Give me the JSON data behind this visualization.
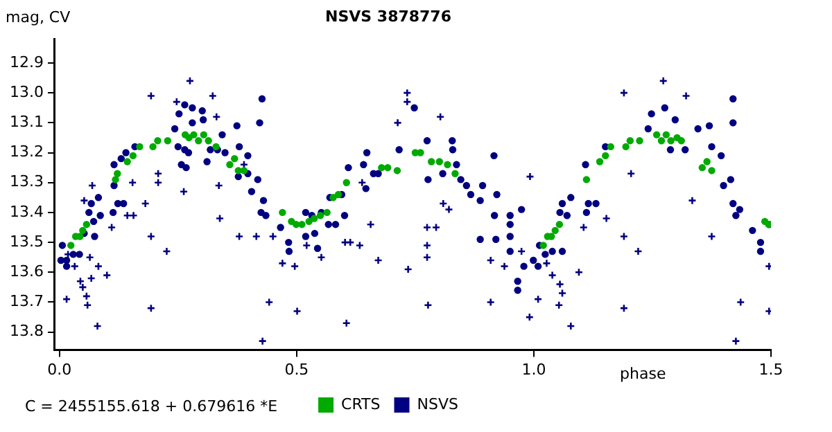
{
  "chart_data": {
    "type": "scatter",
    "title": "NSVS 3878776",
    "xlabel": "phase",
    "ylabel": "mag, CV",
    "annotations": [
      "C = 2455155.618 + 0.679616 *E"
    ],
    "xlim": [
      -0.01,
      1.5
    ],
    "xticks": [
      {
        "value": 0,
        "label": "0.0"
      },
      0.5,
      {
        "value": 1,
        "label": "1.0"
      },
      1.5
    ],
    "ylim": [
      13.86,
      12.82
    ],
    "yticks": [
      12.9,
      {
        "value": 13,
        "label": "13.0"
      },
      13.1,
      13.2,
      13.3,
      13.4,
      13.5,
      13.6,
      13.7,
      13.8
    ],
    "grid": false,
    "legend": "bottom",
    "series": [
      {
        "name": "CRTS",
        "color": "#00aa00",
        "marker": "circle",
        "x": [
          0.024,
          0.034,
          0.043,
          0.049,
          0.057,
          0.118,
          0.122,
          0.143,
          0.155,
          0.169,
          0.197,
          0.207,
          0.228,
          0.265,
          0.273,
          0.283,
          0.293,
          0.304,
          0.314,
          0.33,
          0.359,
          0.369,
          0.377,
          0.389,
          0.47,
          0.489,
          0.499,
          0.511,
          0.526,
          0.537,
          0.55,
          0.564,
          0.577,
          0.588,
          0.605,
          0.679,
          0.692,
          0.712,
          0.75,
          0.761,
          0.784,
          0.801,
          0.818,
          0.834,
          1.02,
          1.029,
          1.037,
          1.045,
          1.054,
          1.111,
          1.139,
          1.151,
          1.162,
          1.194,
          1.203,
          1.223,
          1.259,
          1.269,
          1.279,
          1.289,
          1.302,
          1.311,
          1.355,
          1.365,
          1.375,
          1.487,
          1.495
        ],
        "values": [
          13.51,
          13.48,
          13.48,
          13.46,
          13.44,
          13.29,
          13.27,
          13.23,
          13.21,
          13.18,
          13.18,
          13.16,
          13.16,
          13.14,
          13.15,
          13.14,
          13.16,
          13.14,
          13.16,
          13.18,
          13.24,
          13.22,
          13.26,
          13.26,
          13.4,
          13.43,
          13.44,
          13.44,
          13.43,
          13.42,
          13.41,
          13.4,
          13.35,
          13.34,
          13.3,
          13.25,
          13.25,
          13.26,
          13.2,
          13.2,
          13.23,
          13.23,
          13.24,
          13.27,
          13.51,
          13.48,
          13.48,
          13.46,
          13.44,
          13.29,
          13.23,
          13.21,
          13.18,
          13.18,
          13.16,
          13.16,
          13.14,
          13.16,
          13.14,
          13.16,
          13.15,
          13.16,
          13.25,
          13.23,
          13.26,
          13.43,
          13.44
        ]
      },
      {
        "name": "NSVS",
        "color": "#000080",
        "marker": "circle",
        "x": [
          0.003,
          0.006,
          0.015,
          0.015,
          0.029,
          0.042,
          0.052,
          0.062,
          0.067,
          0.072,
          0.074,
          0.082,
          0.086,
          0.115,
          0.113,
          0.115,
          0.123,
          0.13,
          0.135,
          0.14,
          0.159,
          0.243,
          0.252,
          0.25,
          0.257,
          0.264,
          0.264,
          0.272,
          0.28,
          0.28,
          0.267,
          0.301,
          0.303,
          0.311,
          0.318,
          0.333,
          0.343,
          0.349,
          0.374,
          0.379,
          0.377,
          0.397,
          0.397,
          0.405,
          0.422,
          0.427,
          0.418,
          0.425,
          0.43,
          0.435,
          0.466,
          0.483,
          0.484,
          0.519,
          0.519,
          0.532,
          0.538,
          0.544,
          0.552,
          0.567,
          0.582,
          0.57,
          0.595,
          0.601,
          0.609,
          0.641,
          0.648,
          0.646,
          0.662,
          0.672,
          0.748,
          0.716,
          0.775,
          0.777,
          0.808,
          0.828,
          0.829,
          0.837,
          0.846,
          0.858,
          0.867,
          0.887,
          0.892,
          0.887,
          0.916,
          0.917,
          0.922,
          0.92,
          0.95,
          0.95,
          0.95,
          0.95,
          0.974,
          0.966,
          0.966,
          0.979,
          0.999,
          1.009,
          1.012,
          1.024,
          1.039,
          1.06,
          1.055,
          1.06,
          1.07,
          1.078,
          1.109,
          1.111,
          1.115,
          1.131,
          1.151,
          1.241,
          1.248,
          1.276,
          1.288,
          1.298,
          1.319,
          1.346,
          1.37,
          1.375,
          1.395,
          1.4,
          1.415,
          1.42,
          1.42,
          1.42,
          1.426,
          1.434,
          1.461,
          1.478,
          1.478,
          1.496
        ],
        "values": [
          13.56,
          13.51,
          13.58,
          13.56,
          13.54,
          13.54,
          13.47,
          13.4,
          13.37,
          13.43,
          13.48,
          13.35,
          13.41,
          13.31,
          13.4,
          13.24,
          13.37,
          13.22,
          13.37,
          13.2,
          13.18,
          13.12,
          13.07,
          13.18,
          13.24,
          13.04,
          13.19,
          13.2,
          13.05,
          13.1,
          13.25,
          13.06,
          13.09,
          13.23,
          13.19,
          13.19,
          13.14,
          13.2,
          13.11,
          13.18,
          13.28,
          13.21,
          13.27,
          13.33,
          13.1,
          13.02,
          13.29,
          13.4,
          13.36,
          13.41,
          13.45,
          13.5,
          13.53,
          13.4,
          13.48,
          13.41,
          13.47,
          13.52,
          13.4,
          13.44,
          13.44,
          13.35,
          13.34,
          13.41,
          13.25,
          13.24,
          13.2,
          13.32,
          13.27,
          13.27,
          13.05,
          13.19,
          13.16,
          13.29,
          13.27,
          13.16,
          13.19,
          13.24,
          13.29,
          13.31,
          13.34,
          13.36,
          13.31,
          13.49,
          13.21,
          13.41,
          13.34,
          13.49,
          13.41,
          13.44,
          13.53,
          13.48,
          13.39,
          13.63,
          13.66,
          13.58,
          13.56,
          13.58,
          13.51,
          13.54,
          13.53,
          13.53,
          13.4,
          13.37,
          13.41,
          13.35,
          13.24,
          13.4,
          13.37,
          13.37,
          13.18,
          13.12,
          13.07,
          13.05,
          13.19,
          13.09,
          13.19,
          13.12,
          13.11,
          13.18,
          13.21,
          13.31,
          13.29,
          13.02,
          13.1,
          13.37,
          13.41,
          13.39,
          13.46,
          13.53,
          13.5,
          13.44
        ]
      },
      {
        "color": "#000080",
        "marker": "cross",
        "x": [
          0.018,
          0.015,
          0.032,
          0.044,
          0.049,
          0.057,
          0.059,
          0.064,
          0.067,
          0.069,
          0.052,
          0.082,
          0.08,
          0.1,
          0.11,
          0.143,
          0.156,
          0.154,
          0.181,
          0.193,
          0.193,
          0.193,
          0.208,
          0.208,
          0.226,
          0.247,
          0.262,
          0.275,
          0.323,
          0.331,
          0.336,
          0.338,
          0.379,
          0.389,
          0.415,
          0.428,
          0.442,
          0.45,
          0.47,
          0.496,
          0.501,
          0.521,
          0.552,
          0.602,
          0.605,
          0.613,
          0.633,
          0.656,
          0.672,
          0.638,
          0.733,
          0.733,
          0.713,
          0.775,
          0.775,
          0.775,
          0.777,
          0.735,
          0.794,
          0.803,
          0.809,
          0.821,
          0.909,
          0.909,
          0.938,
          0.974,
          0.991,
          0.992,
          1.009,
          1.027,
          1.039,
          1.055,
          1.053,
          1.06,
          1.078,
          1.095,
          1.105,
          1.153,
          1.19,
          1.19,
          1.19,
          1.205,
          1.22,
          1.273,
          1.321,
          1.334,
          1.375,
          1.436,
          1.426,
          1.496,
          1.496
        ],
        "values": [
          13.54,
          13.69,
          13.58,
          13.63,
          13.65,
          13.68,
          13.71,
          13.55,
          13.62,
          13.31,
          13.36,
          13.58,
          13.78,
          13.61,
          13.45,
          13.41,
          13.41,
          13.3,
          13.37,
          13.01,
          13.48,
          13.72,
          13.27,
          13.3,
          13.53,
          13.03,
          13.33,
          12.96,
          13.01,
          13.08,
          13.31,
          13.42,
          13.48,
          13.24,
          13.48,
          13.83,
          13.7,
          13.48,
          13.57,
          13.58,
          13.73,
          13.51,
          13.55,
          13.5,
          13.77,
          13.5,
          13.51,
          13.44,
          13.56,
          13.3,
          13.0,
          13.03,
          13.1,
          13.45,
          13.51,
          13.55,
          13.71,
          13.59,
          13.45,
          13.08,
          13.37,
          13.39,
          13.56,
          13.7,
          13.58,
          13.53,
          13.75,
          13.28,
          13.69,
          13.57,
          13.61,
          13.64,
          13.71,
          13.67,
          13.78,
          13.6,
          13.45,
          13.42,
          13.0,
          13.48,
          13.72,
          13.27,
          13.53,
          12.96,
          13.01,
          13.36,
          13.48,
          13.7,
          13.83,
          13.58,
          13.73
        ]
      }
    ]
  }
}
